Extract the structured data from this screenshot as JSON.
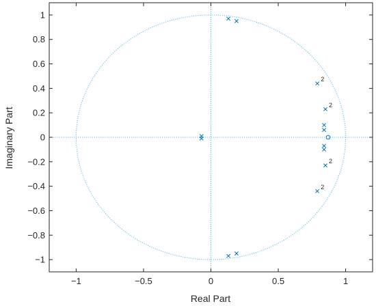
{
  "chart_data": {
    "type": "scatter",
    "title": "",
    "xlabel": "Real Part",
    "ylabel": "Imaginary Part",
    "xlim": [
      -1.2,
      1.2
    ],
    "ylim": [
      -1.1,
      1.1
    ],
    "xticks": [
      -1,
      -0.5,
      0,
      0.5,
      1
    ],
    "xtick_labels": [
      "−1",
      "−0.5",
      "0",
      "0.5",
      "1"
    ],
    "yticks": [
      1,
      0.8,
      0.6,
      0.4,
      0.2,
      0,
      -0.2,
      -0.4,
      -0.6,
      -0.8,
      -1
    ],
    "ytick_labels": [
      "1",
      "0.8",
      "0.6",
      "0.4",
      "0.2",
      "0",
      "−0.2",
      "−0.4",
      "−0.6",
      "−0.8",
      "−1"
    ],
    "unit_circle": true,
    "reference_axes": true,
    "grid": false,
    "marker_color": "#0072BD",
    "circle_color": "#4DBEEE",
    "series": [
      {
        "marker": "x",
        "points": [
          {
            "x": 0.13,
            "y": 0.97
          },
          {
            "x": 0.19,
            "y": 0.95
          },
          {
            "x": 0.13,
            "y": -0.97
          },
          {
            "x": 0.19,
            "y": -0.95
          },
          {
            "x": 0.79,
            "y": 0.44,
            "mult": "2"
          },
          {
            "x": 0.79,
            "y": -0.44,
            "mult": "2"
          },
          {
            "x": 0.85,
            "y": 0.23,
            "mult": "2"
          },
          {
            "x": 0.85,
            "y": -0.23,
            "mult": "2"
          },
          {
            "x": 0.84,
            "y": 0.1
          },
          {
            "x": 0.84,
            "y": 0.06
          },
          {
            "x": 0.84,
            "y": -0.07
          },
          {
            "x": 0.84,
            "y": -0.1
          },
          {
            "x": -0.07,
            "y": 0.01
          },
          {
            "x": -0.07,
            "y": -0.01
          }
        ]
      },
      {
        "marker": "o",
        "points": [
          {
            "x": 0.87,
            "y": 0.0
          }
        ]
      }
    ]
  }
}
